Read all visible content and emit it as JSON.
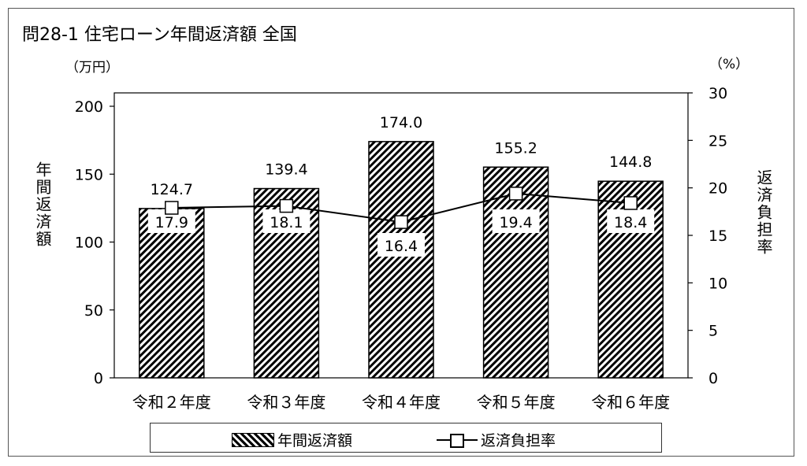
{
  "title": "問28-1 住宅ローン年間返済額 全国",
  "left_unit": "（万円）",
  "right_unit": "（%）",
  "colors": {
    "bar_fill": "#000000",
    "line": "#000000",
    "marker": "#ffffff"
  },
  "chart_data": {
    "type": "bar",
    "categories": [
      "令和２年度",
      "令和３年度",
      "令和４年度",
      "令和５年度",
      "令和６年度"
    ],
    "series": [
      {
        "name": "年間返済額",
        "type": "bar",
        "axis": "left",
        "values": [
          124.7,
          139.4,
          174.0,
          155.2,
          144.8
        ],
        "labels": [
          "124.7",
          "139.4",
          "174.0",
          "155.2",
          "144.8"
        ]
      },
      {
        "name": "返済負担率",
        "type": "line",
        "axis": "right",
        "values": [
          17.9,
          18.1,
          16.4,
          19.4,
          18.4
        ],
        "labels": [
          "17.9",
          "18.1",
          "16.4",
          "19.4",
          "18.4"
        ]
      }
    ],
    "ylabel": "年間返済額",
    "y2label": "返済負担率",
    "ylim": [
      0,
      200
    ],
    "y2lim": [
      0,
      30
    ],
    "yticks": [
      "0",
      "50",
      "100",
      "150",
      "200"
    ],
    "y2ticks": [
      "0",
      "5",
      "10",
      "15",
      "20",
      "25",
      "30"
    ],
    "grid": false,
    "legend": "bottom"
  }
}
